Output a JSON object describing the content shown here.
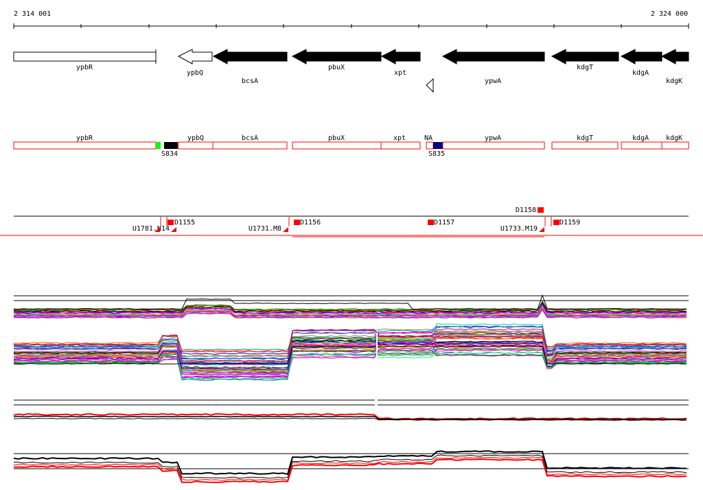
{
  "ruler": {
    "start_label": "2 314 001",
    "end_label": "2 324 000"
  },
  "colors": {
    "gene_fill": "#000000",
    "outline": "#000000",
    "region": "#ff0000",
    "marker_green": "#00ff00",
    "marker_blue": "#000080",
    "marker_black": "#000000",
    "probe": "#ff0000"
  },
  "genes": [
    {
      "name": "ypbR",
      "strand": "plus",
      "filled": false
    },
    {
      "name": "ypbQ",
      "strand": "minus",
      "filled": false
    },
    {
      "name": "bcsA",
      "strand": "minus",
      "filled": true
    },
    {
      "name": "pbuX",
      "strand": "minus",
      "filled": true
    },
    {
      "name": "xpt",
      "strand": "minus",
      "filled": true
    },
    {
      "name": "ypwA",
      "strand": "minus",
      "filled": true
    },
    {
      "name": "kdgT",
      "strand": "minus",
      "filled": true
    },
    {
      "name": "kdgA",
      "strand": "minus",
      "filled": true
    },
    {
      "name": "kdgK",
      "strand": "minus",
      "filled": true
    }
  ],
  "regions": [
    {
      "name": "ypbR"
    },
    {
      "name": "ypbQ"
    },
    {
      "name": "bcsA"
    },
    {
      "name": "pbuX"
    },
    {
      "name": "xpt"
    },
    {
      "name": "NA"
    },
    {
      "name": "ypwA"
    },
    {
      "name": "kdgT"
    },
    {
      "name": "kdgA"
    },
    {
      "name": "kdgK"
    }
  ],
  "markers": [
    {
      "label": "S834"
    },
    {
      "label": "S835"
    }
  ],
  "probes": {
    "upper": [
      "D1158"
    ],
    "lower": [
      "D1155",
      "D1156",
      "D1157",
      "D1159"
    ],
    "u_labels": [
      "U1731.M8",
      "U1781.N14",
      "U1733.M19"
    ]
  }
}
